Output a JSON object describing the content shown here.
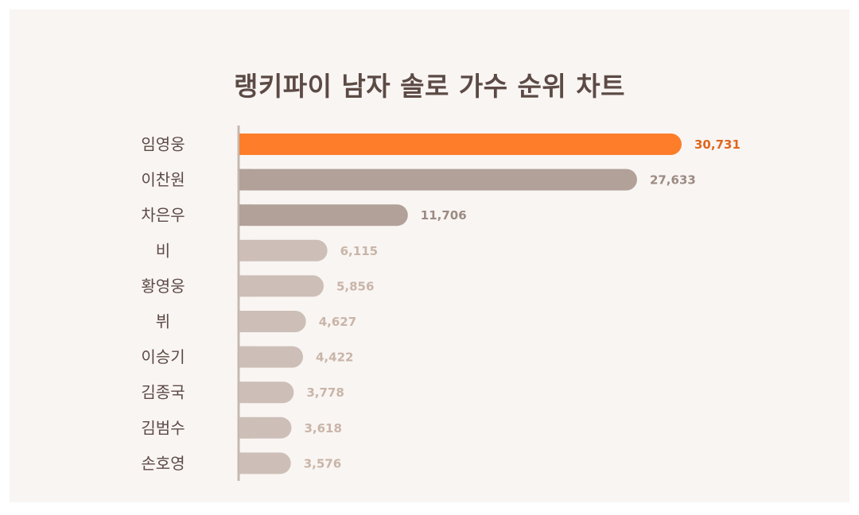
{
  "title": "랭키파이 남자 솔로 가수 순위 차트",
  "colors": {
    "background": "#f9f5f3",
    "highlight": "#fd7d2a",
    "top_tier": "#b1a199",
    "low_tier": "#cdbfb7",
    "label_text": "#5c4a45",
    "axis": "#c5b7b0"
  },
  "chart_data": {
    "type": "bar",
    "orientation": "horizontal",
    "title": "랭키파이 남자 솔로 가수 순위 차트",
    "categories": [
      "임영웅",
      "이찬원",
      "차은우",
      "비",
      "황영웅",
      "뷔",
      "이승기",
      "김종국",
      "김범수",
      "손호영"
    ],
    "values": [
      30731,
      27633,
      11706,
      6115,
      5856,
      4627,
      4422,
      3778,
      3618,
      3576
    ],
    "value_labels": [
      "30,731",
      "27,633",
      "11,706",
      "6,115",
      "5,856",
      "4,627",
      "4,422",
      "3,778",
      "3,618",
      "3,576"
    ],
    "xlim": [
      0,
      30731
    ],
    "grid": false,
    "legend": "none"
  }
}
